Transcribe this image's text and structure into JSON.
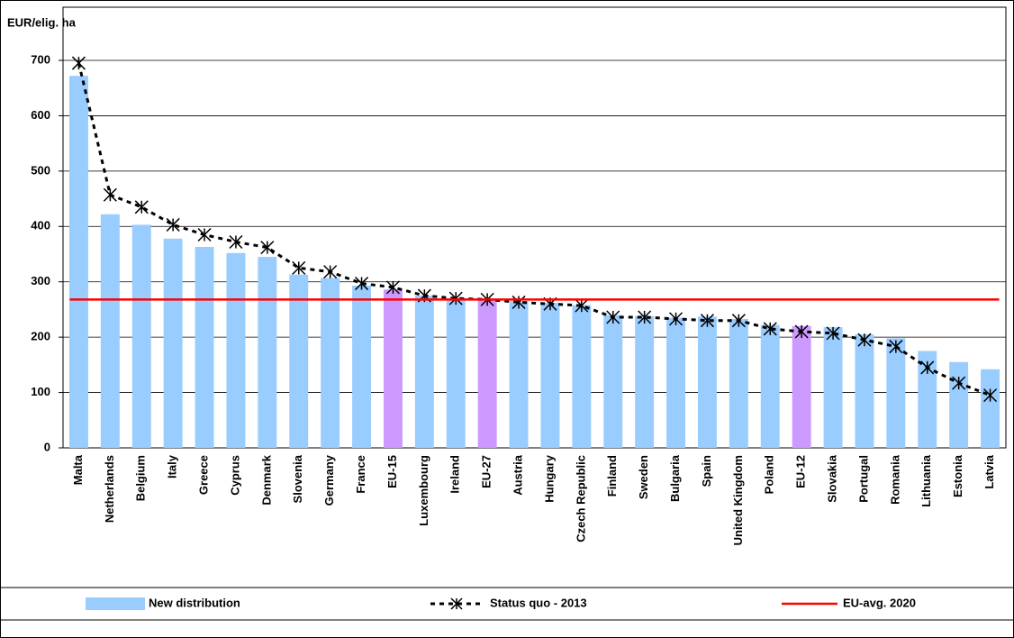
{
  "chart_data": {
    "type": "bar",
    "y_axis_label": "EUR/elig. ha",
    "categories": [
      "Malta",
      "Netherlands",
      "Belgium",
      "Italy",
      "Greece",
      "Cyprus",
      "Denmark",
      "Slovenia",
      "Germany",
      "France",
      "EU-15",
      "Luxembourg",
      "Ireland",
      "EU-27",
      "Austria",
      "Hungary",
      "Czech Republic",
      "Finland",
      "Sweden",
      "Bulgaria",
      "Spain",
      "United Kingdom",
      "Poland",
      "EU-12",
      "Slovakia",
      "Portugal",
      "Romania",
      "Lithuania",
      "Estonia",
      "Latvia"
    ],
    "series": [
      {
        "name": "New distribution",
        "color": "#99ccff",
        "colors": [
          "#99ccff",
          "#99ccff",
          "#99ccff",
          "#99ccff",
          "#99ccff",
          "#99ccff",
          "#99ccff",
          "#99ccff",
          "#99ccff",
          "#99ccff",
          "#cc99ff",
          "#99ccff",
          "#99ccff",
          "#cc99ff",
          "#99ccff",
          "#99ccff",
          "#99ccff",
          "#99ccff",
          "#99ccff",
          "#99ccff",
          "#99ccff",
          "#99ccff",
          "#99ccff",
          "#cc99ff",
          "#99ccff",
          "#99ccff",
          "#99ccff",
          "#99ccff",
          "#99ccff",
          "#99ccff"
        ],
        "values": [
          672,
          422,
          403,
          378,
          363,
          352,
          345,
          313,
          307,
          293,
          286,
          275,
          270,
          268,
          265,
          262,
          258,
          240,
          238,
          235,
          237,
          233,
          222,
          220,
          218,
          205,
          198,
          175,
          155,
          142
        ]
      },
      {
        "name": "Status quo - 2013",
        "color": "#000000",
        "type": "line",
        "values": [
          695,
          457,
          435,
          403,
          385,
          372,
          362,
          325,
          318,
          297,
          290,
          275,
          270,
          268,
          263,
          260,
          257,
          236,
          236,
          233,
          230,
          230,
          215,
          210,
          207,
          195,
          183,
          145,
          117,
          95
        ]
      }
    ],
    "reference_lines": [
      {
        "name": "EU-avg. 2020",
        "value": 268,
        "color": "#ff0000"
      }
    ],
    "ylim": [
      0,
      700
    ],
    "yticks": [
      0,
      100,
      200,
      300,
      400,
      500,
      600,
      700
    ],
    "grid": true
  }
}
